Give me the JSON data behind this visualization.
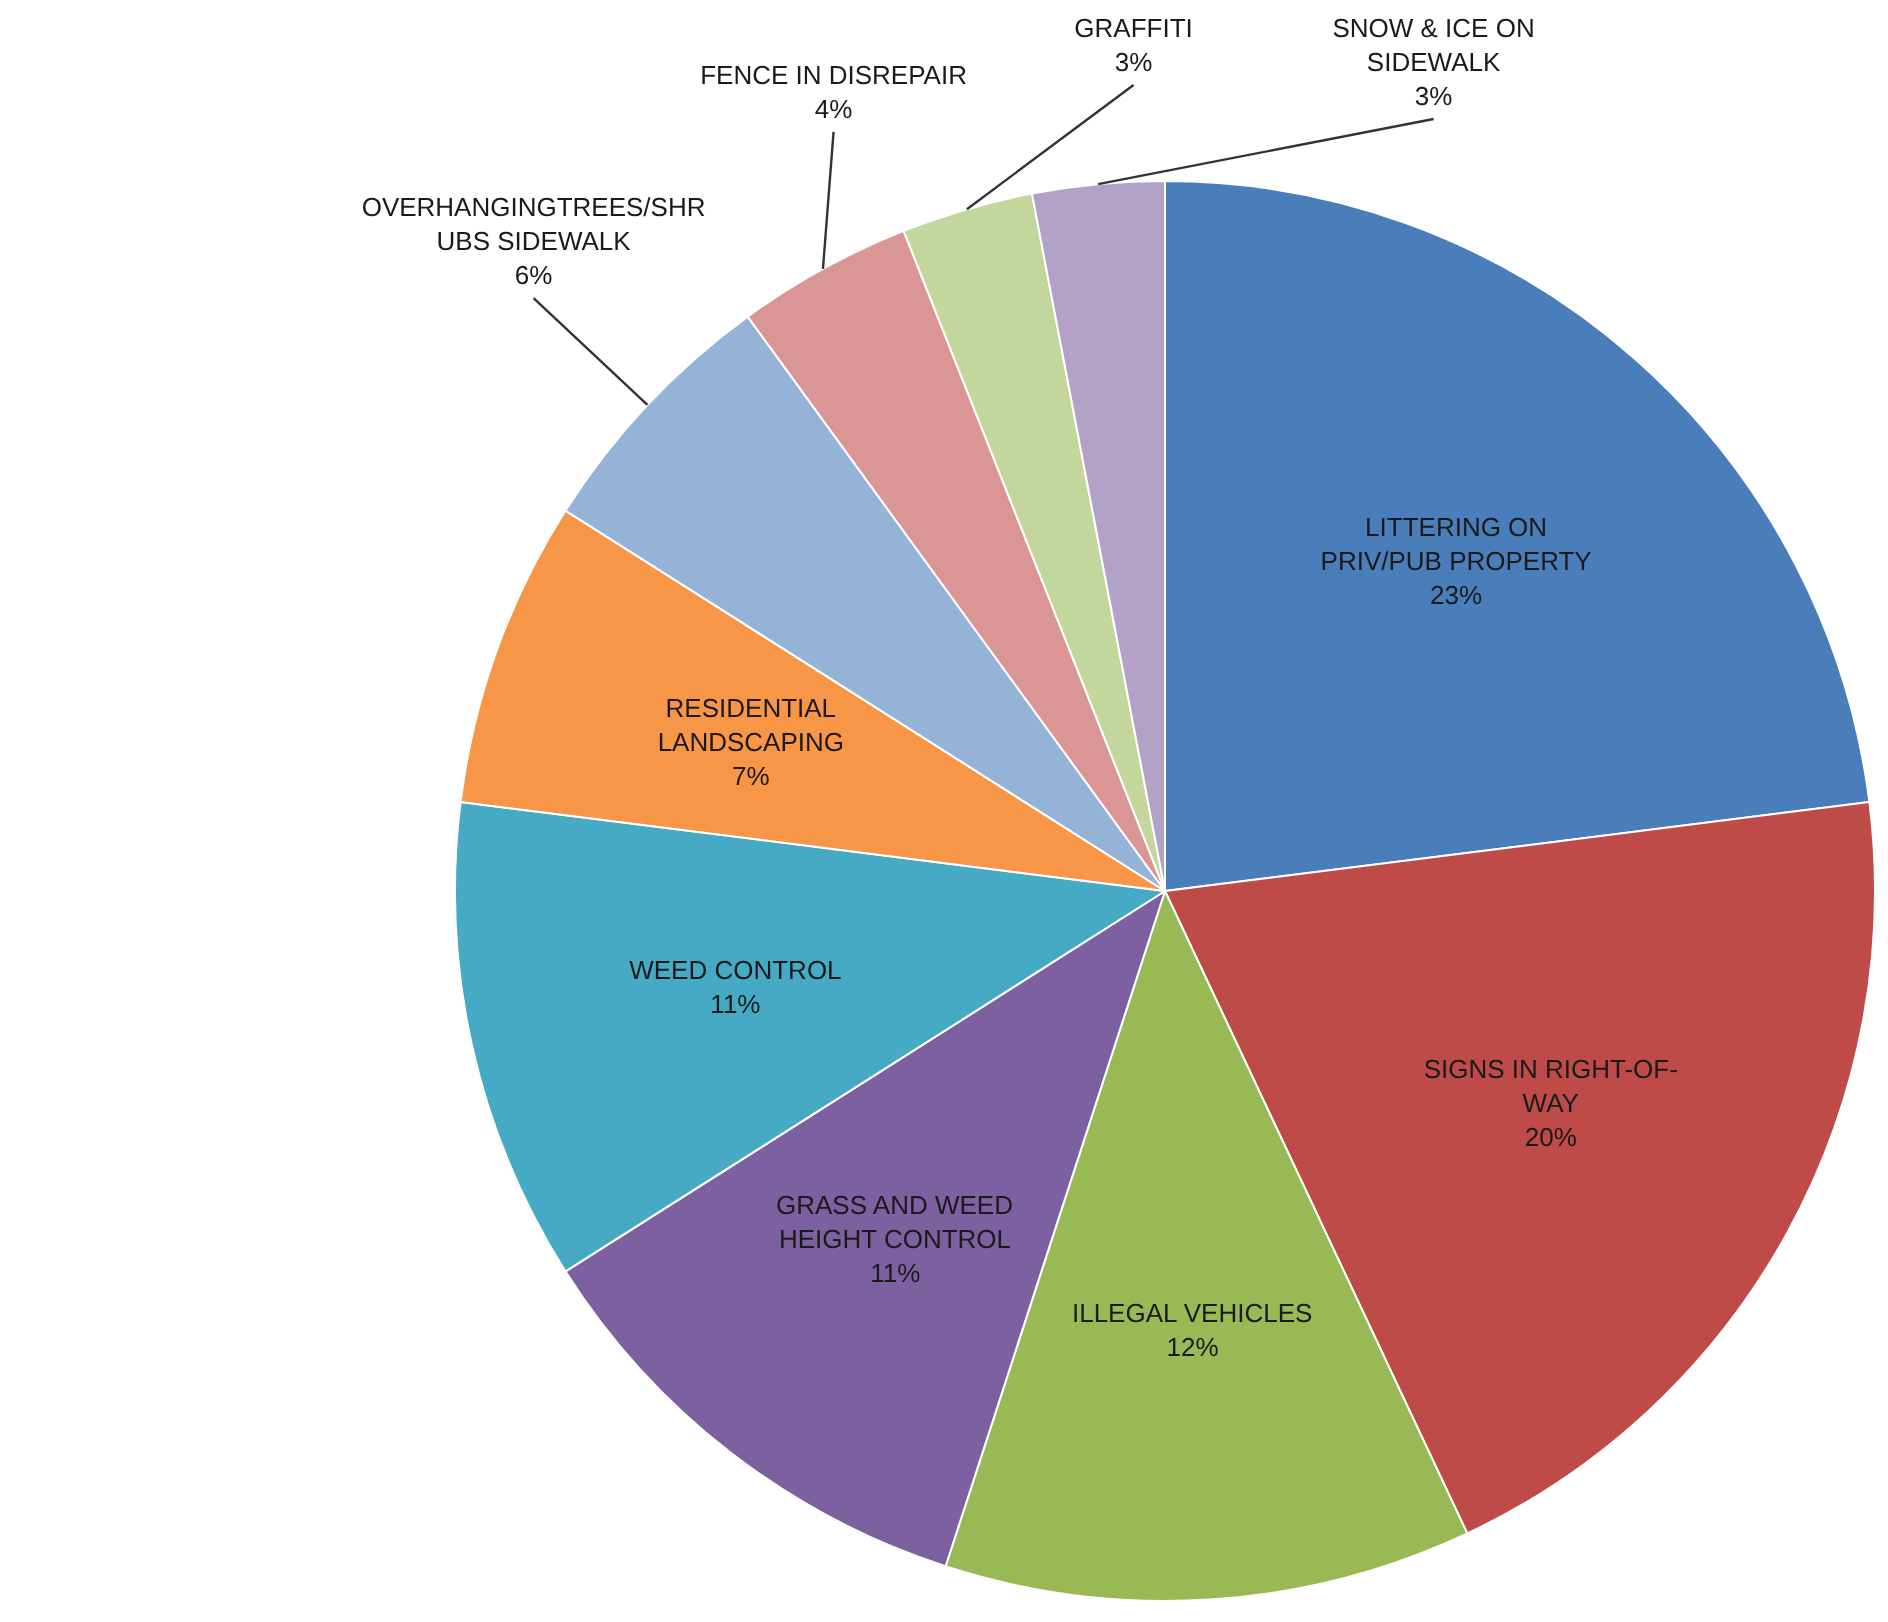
{
  "chart_data": {
    "type": "pie",
    "categories": [
      "LITTERING ON PRIV/PUB PROPERTY",
      "SIGNS IN RIGHT-OF-WAY",
      "ILLEGAL VEHICLES",
      "GRASS AND WEED HEIGHT CONTROL",
      "WEED CONTROL",
      "RESIDENTIAL LANDSCAPING",
      "OVERHANGINGTREES/SHRUBS SIDEWALK",
      "FENCE IN DISREPAIR",
      "GRAFFITI",
      "SNOW & ICE ON SIDEWALK"
    ],
    "values": [
      23,
      20,
      12,
      11,
      11,
      7,
      6,
      4,
      3,
      3
    ],
    "colors": [
      "#4a7ebb",
      "#be4b48",
      "#98b954",
      "#7d60a0",
      "#46aac5",
      "#f79646",
      "#94b3d6",
      "#da9694",
      "#c3d69b",
      "#b3a2c7"
    ],
    "value_labels": [
      "23%",
      "20%",
      "12%",
      "11%",
      "11%",
      "7%",
      "6%",
      "4%",
      "3%",
      "3%"
    ]
  }
}
